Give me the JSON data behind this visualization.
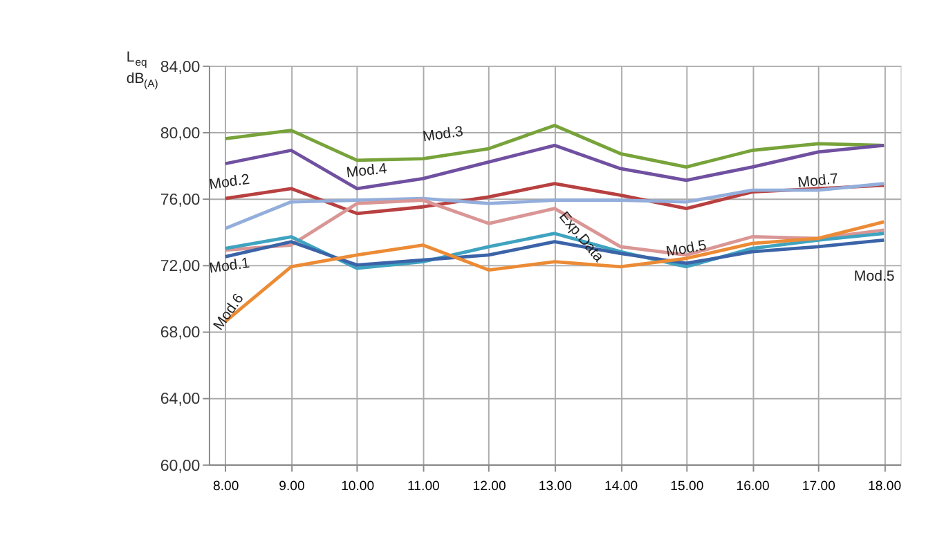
{
  "chart_data": {
    "type": "line",
    "ylabel": "L$_{eq}$ dB$_{(A)}$",
    "categories": [
      "8.00",
      "9.00",
      "10.00",
      "11.00",
      "12.00",
      "13.00",
      "14.00",
      "15.00",
      "16.00",
      "17.00",
      "18.00"
    ],
    "series": [
      {
        "color": "#77a33a",
        "values": [
          79.6,
          80.1,
          78.3,
          78.4,
          79.0,
          80.4,
          78.7,
          77.9,
          78.9,
          79.3,
          79.2
        ]
      },
      {
        "color": "#7050a0",
        "values": [
          78.1,
          78.9,
          76.6,
          77.2,
          78.2,
          79.2,
          77.8,
          77.1,
          77.9,
          78.8,
          79.2
        ]
      },
      {
        "color": "#b84040",
        "values": [
          76.0,
          76.6,
          75.1,
          75.5,
          76.1,
          76.9,
          76.2,
          75.4,
          76.4,
          76.6,
          76.8
        ]
      },
      {
        "color": "#93aedb",
        "values": [
          74.2,
          75.8,
          75.9,
          76.0,
          75.7,
          75.9,
          75.9,
          75.8,
          76.5,
          76.5,
          76.9
        ]
      },
      {
        "color": "#d99695",
        "values": [
          72.9,
          73.2,
          75.7,
          75.9,
          74.5,
          75.4,
          73.1,
          72.6,
          73.7,
          73.6,
          74.1
        ]
      },
      {
        "color": "#3fa3c0",
        "values": [
          73.0,
          73.7,
          71.8,
          72.2,
          73.1,
          73.9,
          72.8,
          71.9,
          73.0,
          73.5,
          73.9
        ]
      },
      {
        "color": "#3b64a8",
        "values": [
          72.5,
          73.4,
          72.0,
          72.3,
          72.6,
          73.4,
          72.7,
          72.1,
          72.8,
          73.1,
          73.5
        ]
      },
      {
        "color": "#ec8b35",
        "values": [
          68.6,
          71.9,
          72.6,
          73.2,
          71.7,
          72.2,
          71.9,
          72.4,
          73.3,
          73.6,
          74.6
        ]
      }
    ],
    "ylim": [
      60,
      84
    ],
    "yticks": [
      {
        "value": 60,
        "label": "60,00"
      },
      {
        "value": 64,
        "label": "64,00"
      },
      {
        "value": 68,
        "label": "68,00"
      },
      {
        "value": 72,
        "label": "72,00"
      },
      {
        "value": 76,
        "label": "76,00"
      },
      {
        "value": 80,
        "label": "80,00"
      },
      {
        "value": 84,
        "label": "84,00"
      }
    ],
    "annotations": [
      "Mod.2",
      "Mod.1",
      "Mod.6",
      "Mod.4",
      "Mod.3",
      "Exp.Data",
      "Mod.5",
      "Mod.7",
      "Mod.5"
    ],
    "grid": true,
    "legend": false,
    "marker": "none",
    "line_style": "solid"
  }
}
